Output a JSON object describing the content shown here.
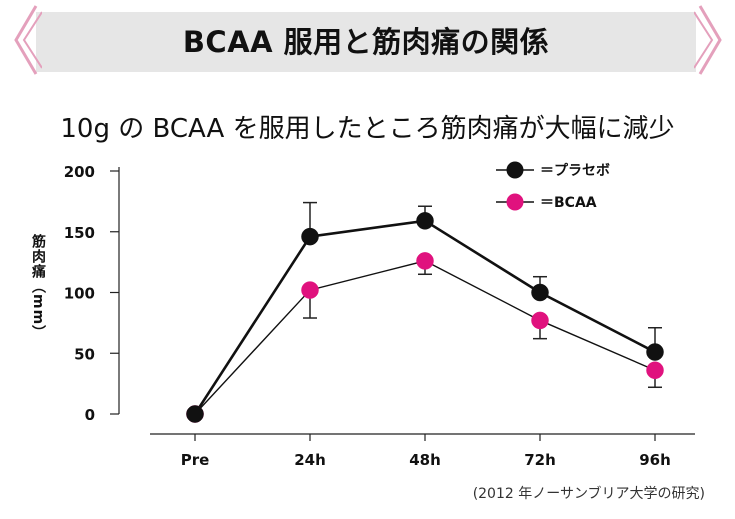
{
  "banner": {
    "title": "BCAA 服用と筋肉痛の関係"
  },
  "chart_data": {
    "type": "line",
    "title": "10g の BCAA を服用したところ筋肉痛が大幅に減少",
    "xlabel": "",
    "ylabel": "筋肉痛（mm）",
    "categories": [
      "Pre",
      "24h",
      "48h",
      "72h",
      "96h"
    ],
    "ylim": [
      0,
      200
    ],
    "yticks": [
      0,
      50,
      100,
      150,
      200
    ],
    "grid": false,
    "legend_position": "top-right",
    "series": [
      {
        "name": "＝プラセボ",
        "color": "#111111",
        "values": [
          0,
          146,
          159,
          100,
          51
        ],
        "err": [
          0,
          28,
          12,
          13,
          20
        ],
        "err_dir": "up"
      },
      {
        "name": "＝BCAA",
        "color": "#e0127e",
        "values": [
          0,
          102,
          126,
          77,
          36
        ],
        "err": [
          0,
          23,
          11,
          15,
          14
        ],
        "err_dir": "down"
      }
    ],
    "source": "(2012 年ノーサンブリア大学の研究)"
  }
}
